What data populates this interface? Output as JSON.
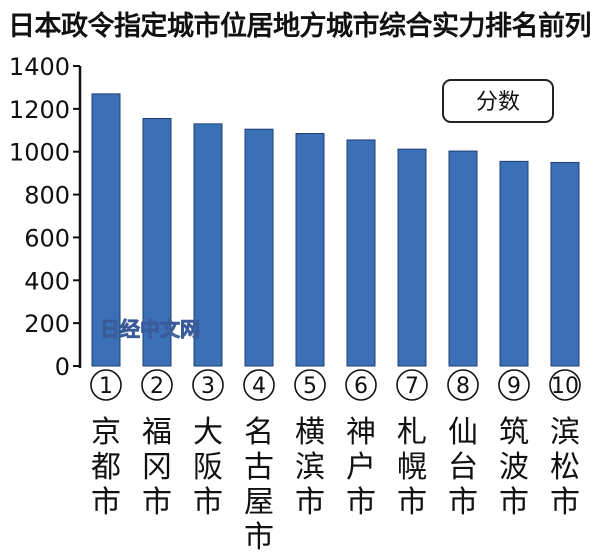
{
  "title": "日本政令指定城市位居地方城市综合实力排名前列",
  "watermark": "日经中文网",
  "chart_data": {
    "type": "bar",
    "legend": "分数",
    "legend_position": "top-right",
    "bar_color": "#3b6fb6",
    "ylim": [
      0,
      1400
    ],
    "yticks": [
      "0",
      "200",
      "400",
      "600",
      "800",
      "1000",
      "1200",
      "1400"
    ],
    "ranks": [
      "①",
      "②",
      "③",
      "④",
      "⑤",
      "⑥",
      "⑦",
      "⑧",
      "⑨",
      "⑩"
    ],
    "categories": [
      "京都市",
      "福冈市",
      "大阪市",
      "名古屋市",
      "横滨市",
      "神户市",
      "札幌市",
      "仙台市",
      "筑波市",
      "滨松市"
    ],
    "values": [
      1270,
      1155,
      1130,
      1105,
      1085,
      1055,
      1012,
      1003,
      955,
      950
    ]
  }
}
